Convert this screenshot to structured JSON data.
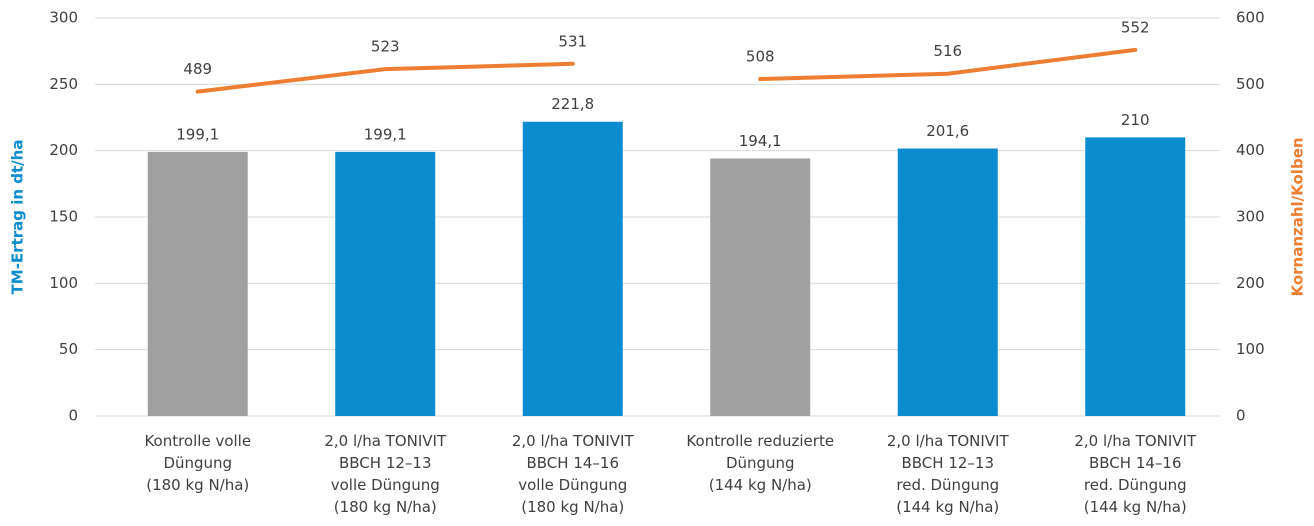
{
  "chart_data": {
    "type": "bar",
    "ylabel": "TM-Ertrag in dt/ha",
    "y2label": "Kornanzahl/Kolben",
    "categories": [
      [
        "Kontrolle volle",
        "Düngung",
        "(180 kg N/ha)"
      ],
      [
        "2,0 l/ha TONIVIT",
        "BBCH 12–13",
        "volle Düngung",
        "(180 kg N/ha)"
      ],
      [
        "2,0 l/ha TONIVIT",
        "BBCH 14–16",
        "volle Düngung",
        "(180 kg N/ha)"
      ],
      [
        "Kontrolle reduzierte",
        "Düngung",
        "(144 kg N/ha)"
      ],
      [
        "2,0 l/ha TONIVIT",
        "BBCH 12–13",
        "red. Düngung",
        "(144 kg N/ha)"
      ],
      [
        "2,0 l/ha TONIVIT",
        "BBCH 14–16",
        "red. Düngung",
        "(144 kg N/ha)"
      ]
    ],
    "values": [
      199.1,
      199.1,
      221.8,
      194.1,
      201.6,
      210
    ],
    "value_labels": [
      "199,1",
      "199,1",
      "221,8",
      "194,1",
      "201,6",
      "210"
    ],
    "colors": [
      "#a0a0a0",
      "#0a8ccf",
      "#0a8ccf",
      "#a0a0a0",
      "#0a8ccf",
      "#0a8ccf"
    ],
    "lines": [
      {
        "type": "line",
        "axis": "y2",
        "color": "#ed7d31",
        "values": [
          489,
          523,
          531,
          null,
          null,
          null
        ]
      },
      {
        "type": "line",
        "axis": "y2",
        "color": "#ed7d31",
        "values": [
          null,
          null,
          null,
          508,
          516,
          552
        ]
      }
    ],
    "ylim": [
      0,
      300
    ],
    "yticks": [
      0,
      50,
      100,
      150,
      200,
      250,
      300
    ],
    "y2lim": [
      0,
      600
    ],
    "y2ticks": [
      0,
      100,
      200,
      300,
      400,
      500,
      600
    ],
    "ylabel_color": "#0a8ccf",
    "y2label_color": "#ed7d31",
    "grid": true
  }
}
